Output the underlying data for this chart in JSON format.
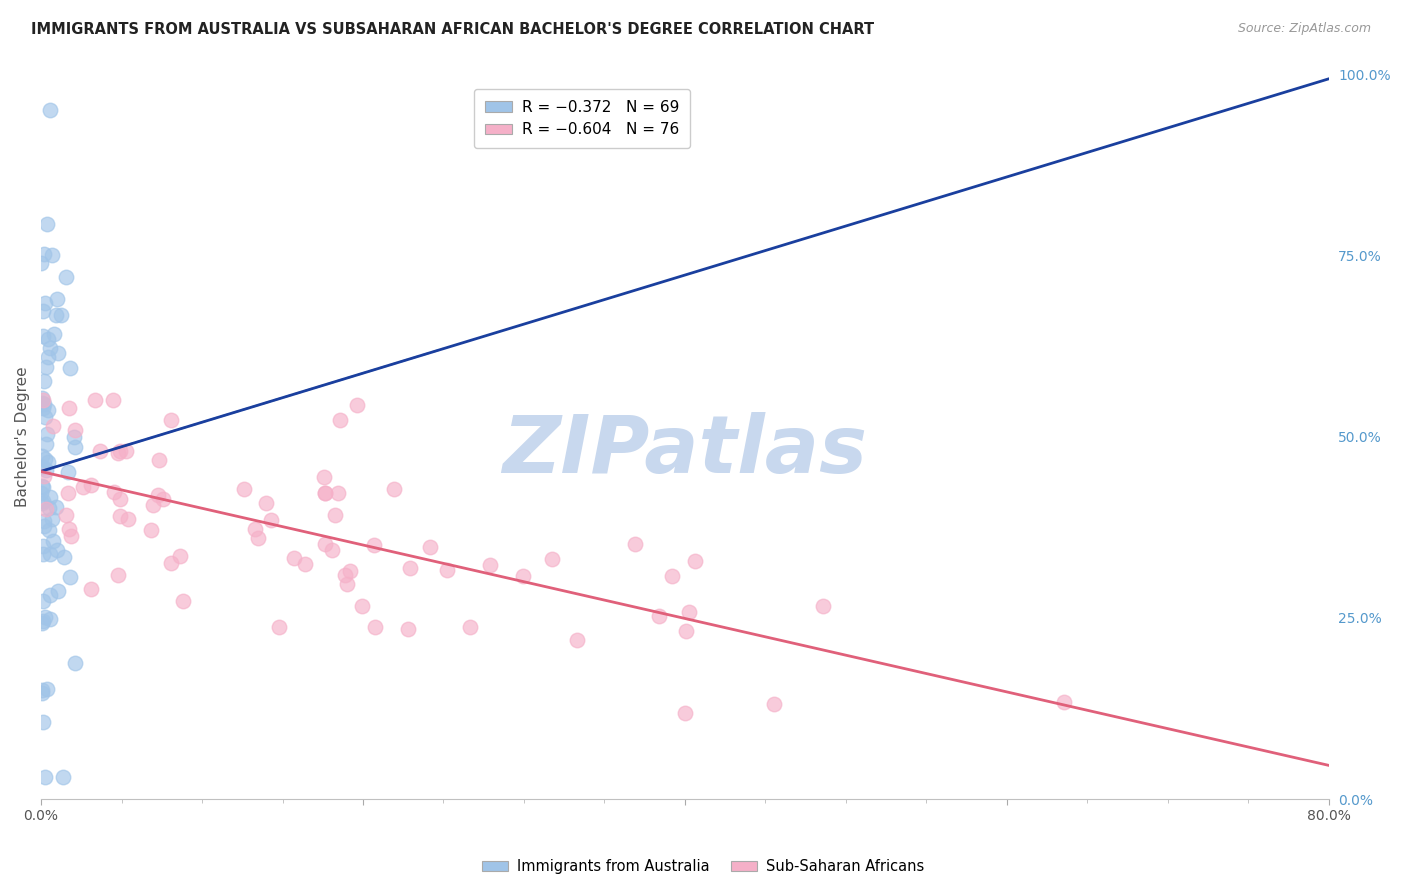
{
  "title": "IMMIGRANTS FROM AUSTRALIA VS SUBSAHARAN AFRICAN BACHELOR'S DEGREE CORRELATION CHART",
  "source": "Source: ZipAtlas.com",
  "ylabel": "Bachelor's Degree",
  "right_ytick_values": [
    0,
    25,
    50,
    75,
    100
  ],
  "right_ytick_labels": [
    "0.0%",
    "25.0%",
    "50.0%",
    "75.0%",
    "100.0%"
  ],
  "legend_label_aus": "Immigrants from Australia",
  "legend_label_ssa": "Sub-Saharan Africans",
  "aus_color": "#a0c4e8",
  "ssa_color": "#f5b0c8",
  "aus_line_color": "#1a3f9e",
  "ssa_line_color": "#e0607a",
  "aus_R": -0.372,
  "aus_N": 69,
  "ssa_R": -0.604,
  "ssa_N": 76,
  "xlim": [
    0,
    80
  ],
  "ylim": [
    0,
    100
  ],
  "background_color": "#ffffff",
  "grid_color": "#d0d0d0",
  "watermark_text": "ZIPatlas",
  "watermark_color": "#c8d8ee",
  "title_color": "#222222",
  "source_color": "#999999",
  "ylabel_color": "#555555",
  "right_tick_color": "#5599cc",
  "legend_entry_aus": "R = −0.372   N = 69",
  "legend_entry_ssa": "R = −0.604   N = 76"
}
